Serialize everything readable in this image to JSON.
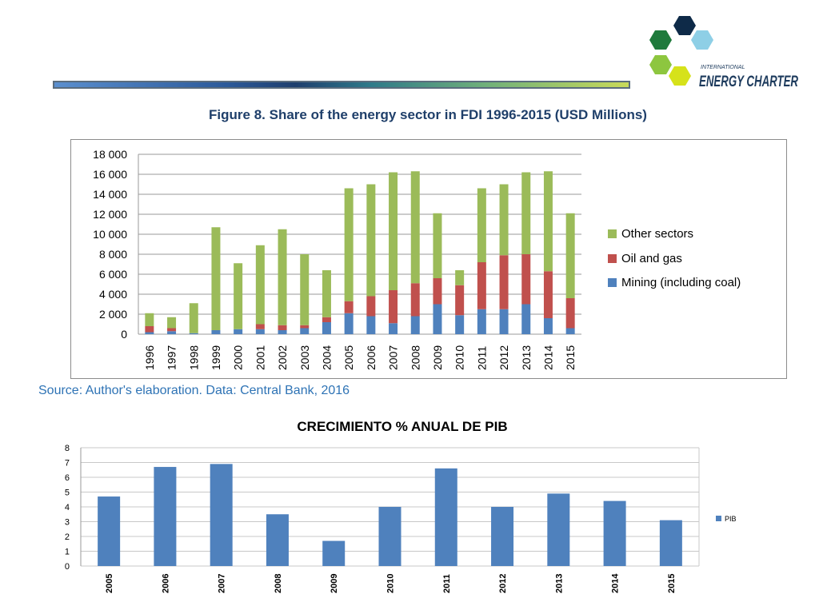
{
  "header": {
    "logo_small_text": "INTERNATIONAL",
    "logo_main_text": "ENERGY CHARTER"
  },
  "figure_title": "Figure 8. Share of the energy sector in FDI 1996-2015 (USD Millions)",
  "source_text": "Source: Author's elaboration. Data: Central Bank, 2016",
  "colors": {
    "mining": "#4f81bd",
    "oil_gas": "#c0504d",
    "other": "#9bbb59",
    "pib": "#4f81bd"
  },
  "chart_data": [
    {
      "type": "bar",
      "stacked": true,
      "categories": [
        "1996",
        "1997",
        "1998",
        "1999",
        "2000",
        "2001",
        "2002",
        "2003",
        "2004",
        "2005",
        "2006",
        "2007",
        "2008",
        "2009",
        "2010",
        "2011",
        "2012",
        "2013",
        "2014",
        "2015"
      ],
      "series": [
        {
          "name": "Mining (including coal)",
          "values": [
            200,
            300,
            100,
            400,
            500,
            500,
            400,
            600,
            1200,
            2100,
            1800,
            1100,
            1800,
            3000,
            1900,
            2500,
            2500,
            3000,
            1600,
            600
          ]
        },
        {
          "name": "Oil and gas",
          "values": [
            600,
            300,
            0,
            0,
            0,
            500,
            500,
            300,
            500,
            1200,
            2000,
            3300,
            3300,
            2600,
            3000,
            4700,
            5400,
            5000,
            4700,
            3000
          ]
        },
        {
          "name": "Other sectors",
          "values": [
            1300,
            1100,
            3000,
            10300,
            6600,
            7900,
            9600,
            7100,
            4700,
            11300,
            11200,
            11800,
            11200,
            6500,
            1500,
            7400,
            7100,
            8200,
            10000,
            8500
          ]
        }
      ],
      "ylim": [
        0,
        18000
      ],
      "yticks": [
        "0",
        "2 000",
        "4 000",
        "6 000",
        "8 000",
        "10 000",
        "12 000",
        "14 000",
        "16 000",
        "18 000"
      ],
      "grid": true,
      "legend_position": "right"
    },
    {
      "type": "bar",
      "title": "CRECIMIENTO % ANUAL DE PIB",
      "categories": [
        "2005",
        "2006",
        "2007",
        "2008",
        "2009",
        "2010",
        "2011",
        "2012",
        "2013",
        "2014",
        "2015"
      ],
      "series": [
        {
          "name": "PIB",
          "values": [
            4.7,
            6.7,
            6.9,
            3.5,
            1.7,
            4.0,
            6.6,
            4.0,
            4.9,
            4.4,
            3.1
          ]
        }
      ],
      "ylim": [
        0,
        8
      ],
      "yticks": [
        "0",
        "1",
        "2",
        "3",
        "4",
        "5",
        "6",
        "7",
        "8"
      ],
      "grid": true,
      "legend_position": "right"
    }
  ]
}
